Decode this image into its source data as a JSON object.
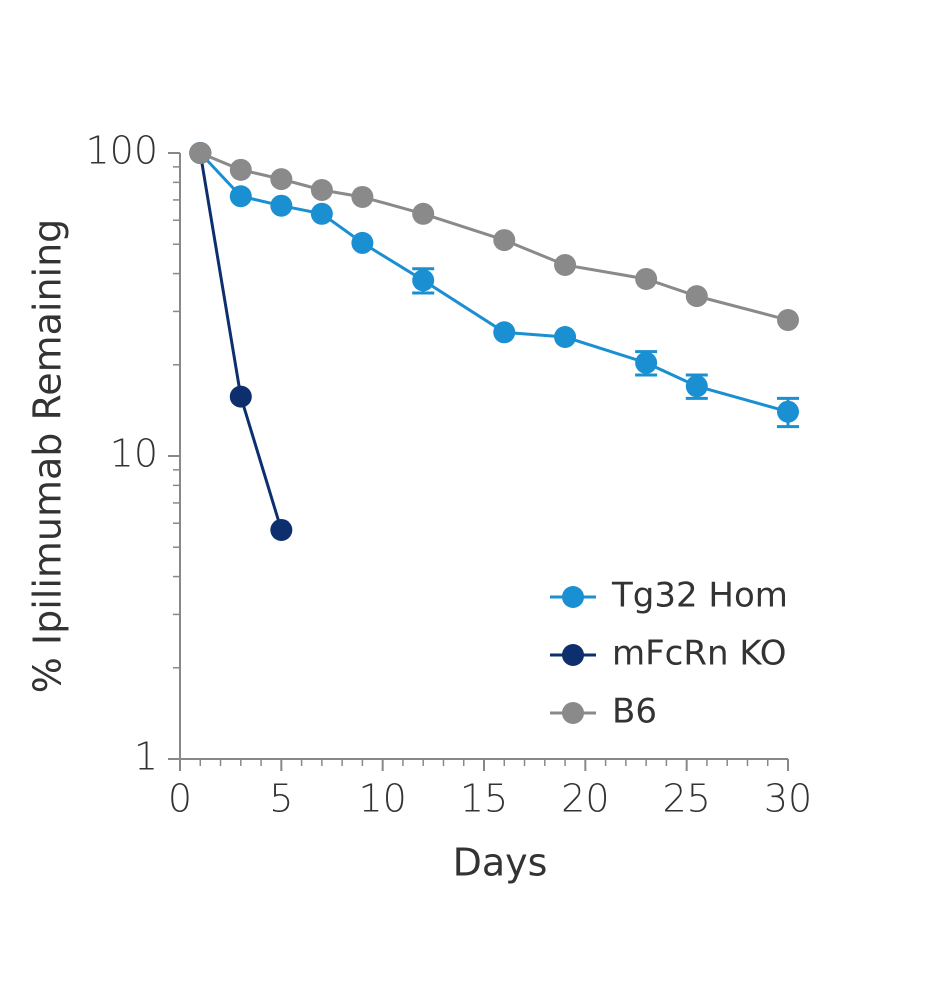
{
  "chart_data": {
    "type": "line",
    "xlabel": "Days",
    "ylabel": "% Ipilimumab Remaining",
    "xlim": [
      0,
      30
    ],
    "xticks": [
      0,
      5,
      10,
      15,
      20,
      25,
      30
    ],
    "xminorticks": [
      1,
      2,
      3,
      4,
      6,
      7,
      8,
      9,
      11,
      12,
      13,
      14,
      16,
      17,
      18,
      19,
      21,
      22,
      23,
      24,
      26,
      27,
      28,
      29
    ],
    "ylim": [
      1,
      100
    ],
    "yticks": [
      1,
      10,
      100
    ],
    "yscale": "log",
    "yminorticks": [
      2,
      3,
      4,
      5,
      6,
      7,
      8,
      9,
      20,
      30,
      40,
      50,
      60,
      70,
      80,
      90
    ],
    "legend": "lower right",
    "series": [
      {
        "name": "Tg32 Hom",
        "color": "#1a8fd1",
        "x": [
          1,
          3,
          5,
          7,
          9,
          12,
          16,
          19,
          23,
          25.5,
          30
        ],
        "values": [
          100,
          72,
          67,
          63,
          50.5,
          38,
          25.6,
          24.7,
          20.3,
          17,
          14
        ],
        "errors": [
          null,
          null,
          null,
          null,
          null,
          3.5,
          null,
          null,
          1.8,
          1.5,
          1.5
        ]
      },
      {
        "name": "mFcRn KO",
        "color": "#0d2f6e",
        "x": [
          1,
          3,
          5
        ],
        "values": [
          100,
          15.7,
          5.7
        ]
      },
      {
        "name": "B6",
        "color": "#8a8a8a",
        "x": [
          1,
          3,
          5,
          7,
          9,
          12,
          16,
          19,
          23,
          25.5,
          30
        ],
        "values": [
          100,
          88,
          82,
          75.5,
          71.6,
          63,
          51.6,
          42.7,
          38.4,
          33.7,
          28.1
        ]
      }
    ]
  }
}
